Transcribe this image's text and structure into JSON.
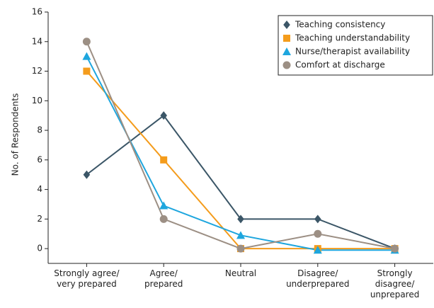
{
  "chart_data": {
    "type": "line",
    "ylabel": "No. of Respondents",
    "categories": [
      "Strongly agree/\nvery prepared",
      "Agree/\nprepared",
      "Neutral",
      "Disagree/\nunderprepared",
      "Strongly\ndisagree/\nunprepared"
    ],
    "series": [
      {
        "name": "Teaching consistency",
        "color": "#3b5667",
        "marker": "diamond",
        "values": [
          5,
          9,
          2,
          2,
          0
        ]
      },
      {
        "name": "Teaching understandability",
        "color": "#f49c1c",
        "marker": "square",
        "values": [
          12,
          6,
          0,
          0,
          0
        ]
      },
      {
        "name": "Nurse/therapist availability",
        "color": "#1ea6de",
        "marker": "triangle",
        "values": [
          13,
          2.9,
          0.9,
          -0.1,
          -0.1
        ]
      },
      {
        "name": "Comfort at discharge",
        "color": "#9c8f84",
        "marker": "circle",
        "values": [
          14,
          2,
          0,
          1,
          0
        ]
      }
    ],
    "ylim": [
      -1,
      16
    ],
    "yticks": [
      0,
      2,
      4,
      6,
      8,
      10,
      12,
      14,
      16
    ],
    "grid": false,
    "legend": "upper right"
  }
}
